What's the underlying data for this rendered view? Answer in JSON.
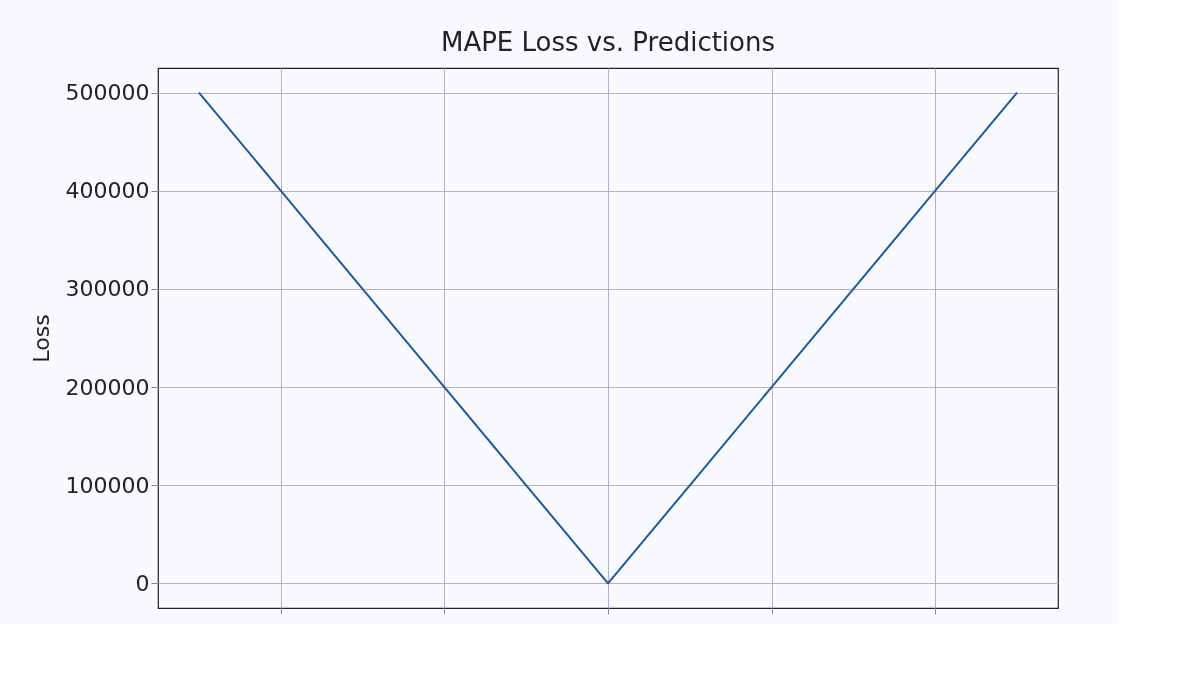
{
  "chart_data": {
    "type": "line",
    "title": "MAPE Loss vs. Predictions",
    "ylabel": "Loss",
    "categories": [
      null,
      null,
      null,
      null,
      null,
      null,
      null,
      null,
      null,
      null,
      null
    ],
    "series": [
      {
        "color": "#1f5a96",
        "values": [
          500000,
          400000,
          300000,
          200000,
          100000,
          0,
          100000,
          200000,
          300000,
          400000,
          500000
        ]
      }
    ],
    "ylim": [
      -25000,
      525000
    ],
    "yticks": [
      0,
      100000,
      200000,
      300000,
      400000,
      500000
    ],
    "grid": true,
    "marker": "none",
    "line_style": "solid",
    "tick_labels": "y"
  }
}
